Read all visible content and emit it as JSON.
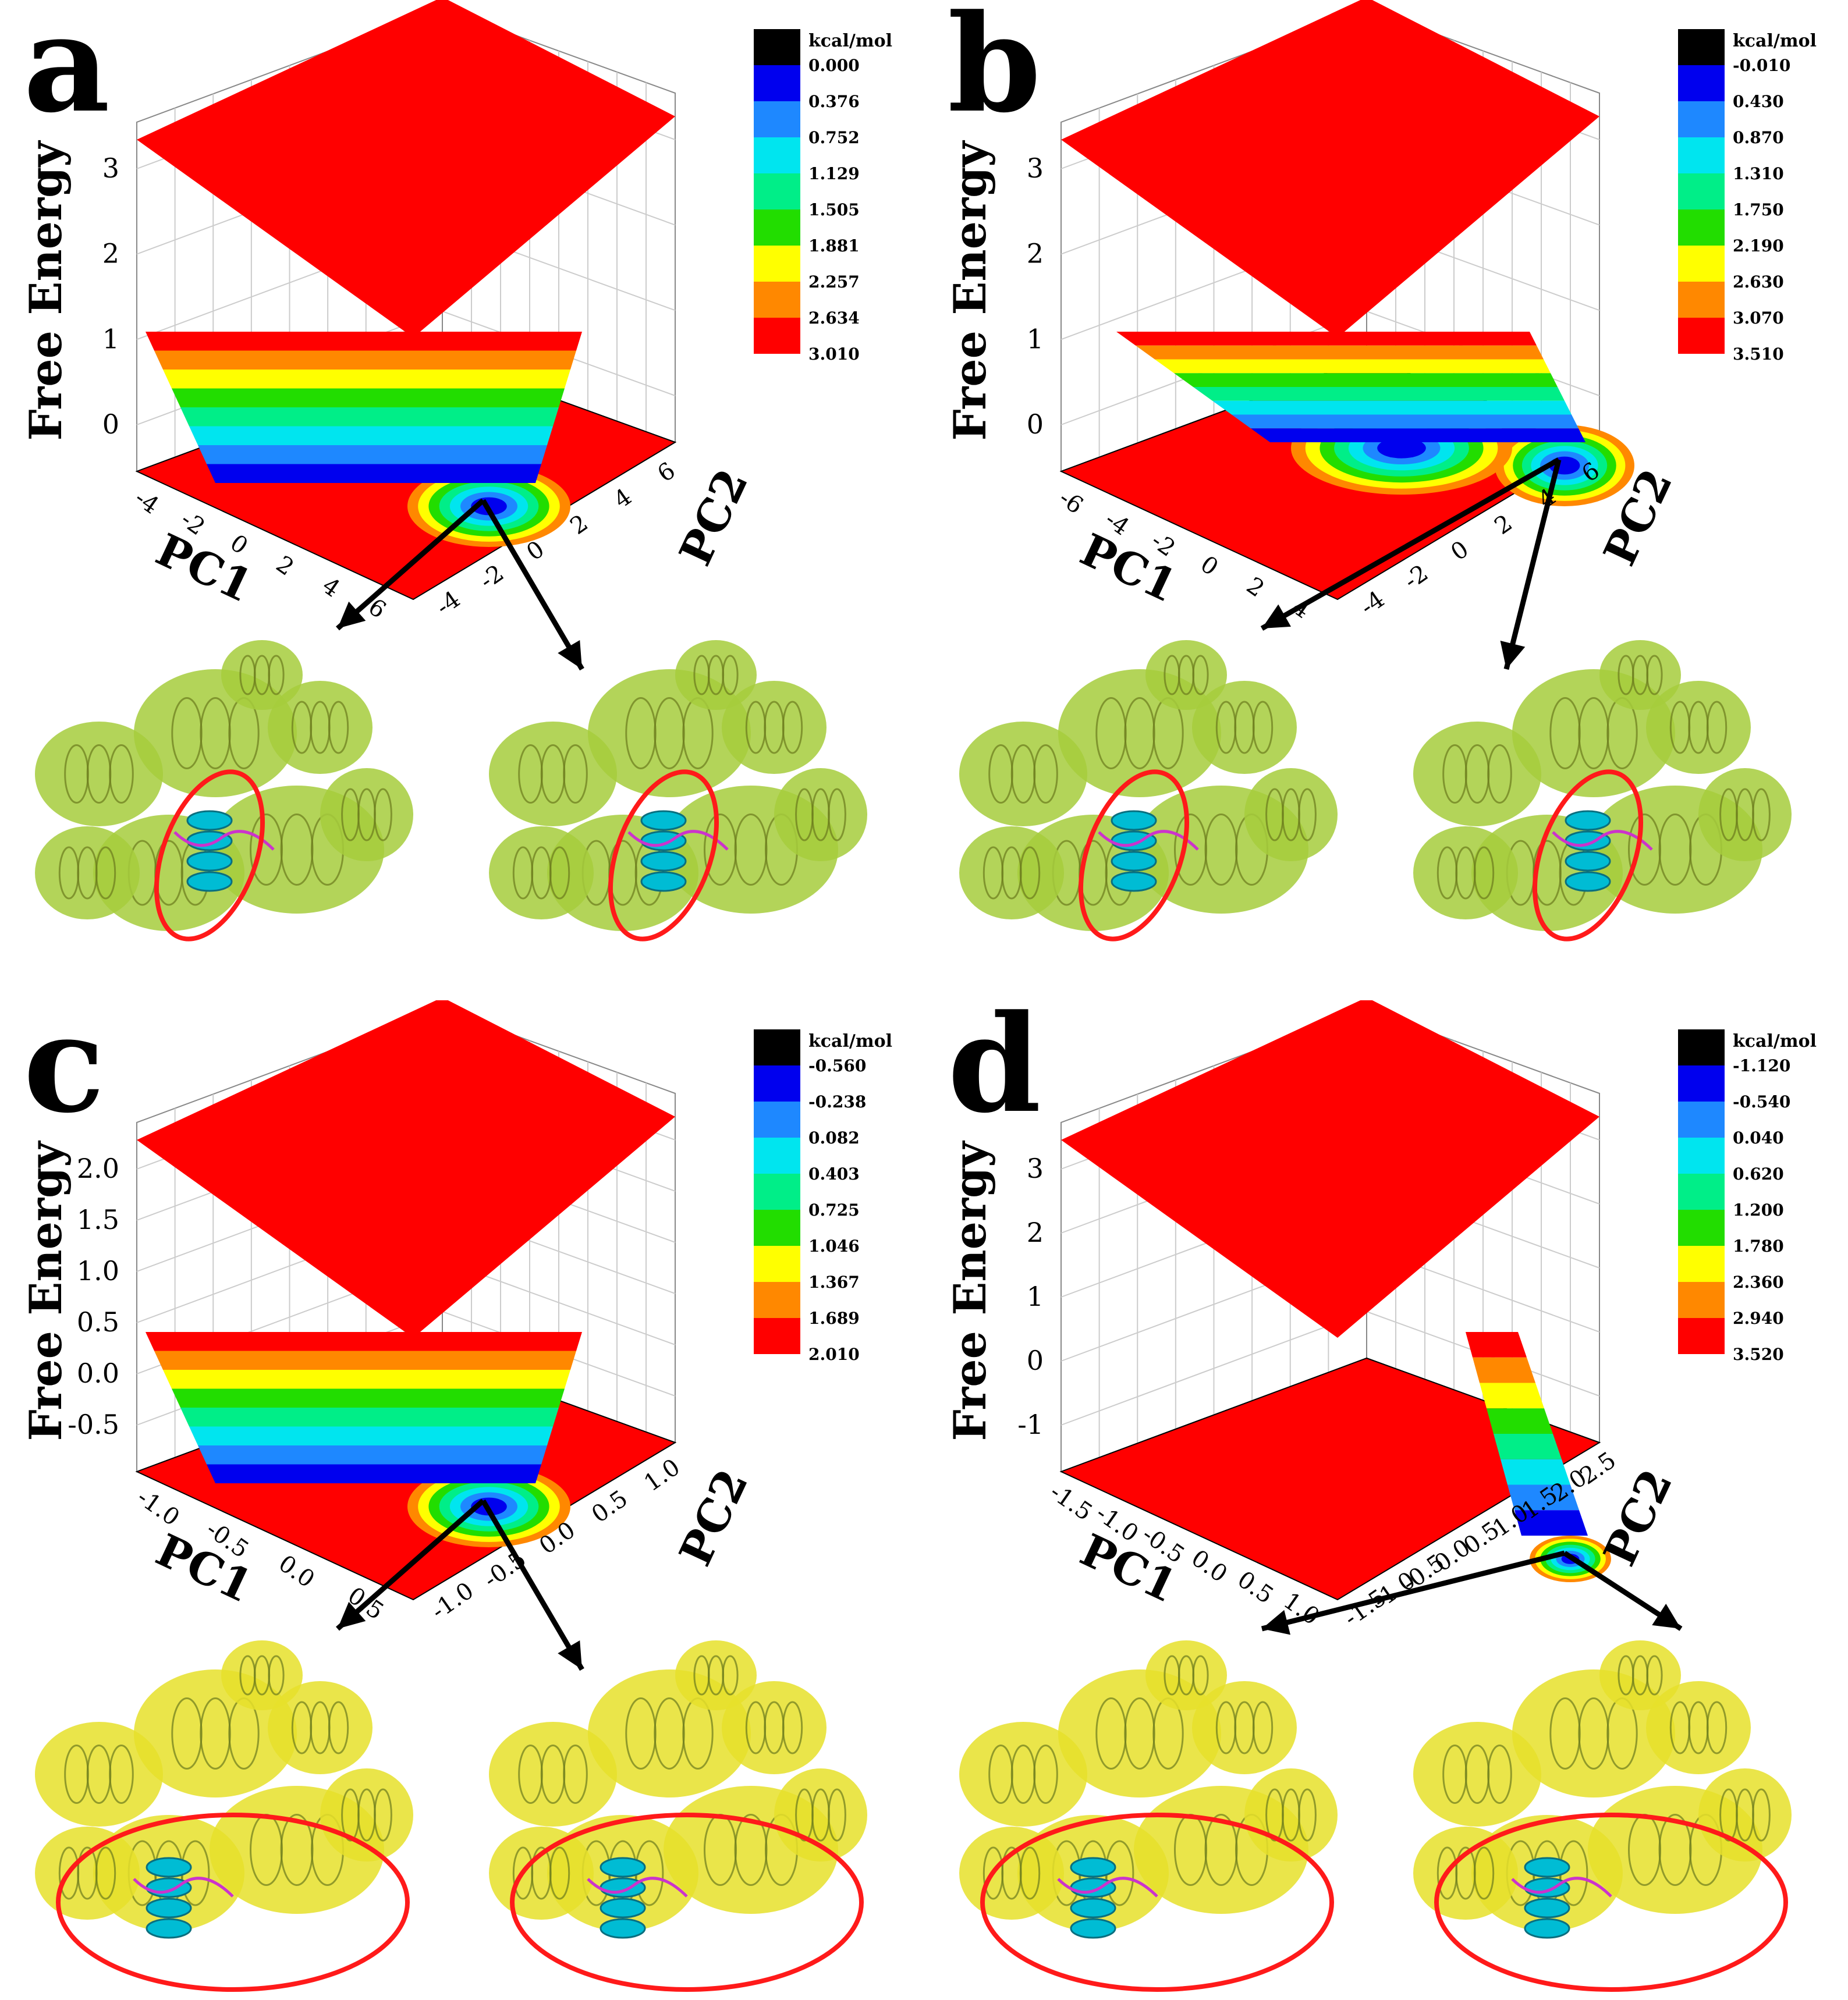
{
  "chart_data": [
    {
      "panel": "a",
      "type": "surface",
      "zlabel": "Free Energy",
      "xlabel": "PC1",
      "ylabel": "PC2",
      "zticks": [
        "0",
        "1",
        "2",
        "3"
      ],
      "xticks": [
        "-4",
        "-2",
        "0",
        "2",
        "4",
        "6"
      ],
      "yticks": [
        "-4",
        "-2",
        "0",
        "2",
        "4",
        "6"
      ],
      "colorbar_unit": "kcal/mol",
      "colorbar_levels": [
        "0.000",
        "0.376",
        "0.752",
        "1.129",
        "1.505",
        "1.881",
        "2.257",
        "2.634",
        "3.010"
      ],
      "colorbar_colors": [
        "#000000",
        "#0000ee",
        "#1e88ff",
        "#00e5ef",
        "#00ee88",
        "#22dd00",
        "#ffff00",
        "#ff8800",
        "#ff0000"
      ],
      "wells": 2,
      "structure_color": "#a6cc3c",
      "highlight_colors": [
        "#00bcd4",
        "#cc33cc"
      ]
    },
    {
      "panel": "b",
      "type": "surface",
      "zlabel": "Free Energy",
      "xlabel": "PC1",
      "ylabel": "PC2",
      "zticks": [
        "0",
        "1",
        "2",
        "3"
      ],
      "xticks": [
        "-6",
        "-4",
        "-2",
        "0",
        "2",
        "4"
      ],
      "yticks": [
        "-4",
        "-2",
        "0",
        "2",
        "4",
        "6"
      ],
      "colorbar_unit": "kcal/mol",
      "colorbar_levels": [
        "-0.010",
        "0.430",
        "0.870",
        "1.310",
        "1.750",
        "2.190",
        "2.630",
        "3.070",
        "3.510"
      ],
      "colorbar_colors": [
        "#000000",
        "#0000ee",
        "#1e88ff",
        "#00e5ef",
        "#00ee88",
        "#22dd00",
        "#ffff00",
        "#ff8800",
        "#ff0000"
      ],
      "wells": 2,
      "structure_color": "#a6cc3c",
      "highlight_colors": [
        "#00bcd4",
        "#cc33cc"
      ]
    },
    {
      "panel": "c",
      "type": "surface",
      "zlabel": "Free Energy",
      "xlabel": "PC1",
      "ylabel": "PC2",
      "zticks": [
        "-0.5",
        "0.0",
        "0.5",
        "1.0",
        "1.5",
        "2.0"
      ],
      "xticks": [
        "-1.0",
        "-0.5",
        "0.0",
        "0.5"
      ],
      "yticks": [
        "-1.0",
        "-0.5",
        "0.0",
        "0.5",
        "1.0"
      ],
      "colorbar_unit": "kcal/mol",
      "colorbar_levels": [
        "-0.560",
        "-0.238",
        "0.082",
        "0.403",
        "0.725",
        "1.046",
        "1.367",
        "1.689",
        "2.010"
      ],
      "colorbar_colors": [
        "#000000",
        "#0000ee",
        "#1e88ff",
        "#00e5ef",
        "#00ee88",
        "#22dd00",
        "#ffff00",
        "#ff8800",
        "#ff0000"
      ],
      "wells": 2,
      "structure_color": "#e6e02a",
      "highlight_colors": [
        "#00bcd4",
        "#cc33cc"
      ]
    },
    {
      "panel": "d",
      "type": "surface",
      "zlabel": "Free Energy",
      "xlabel": "PC1",
      "ylabel": "PC2",
      "zticks": [
        "-1",
        "0",
        "1",
        "2",
        "3"
      ],
      "xticks": [
        "-1.5",
        "-1.0",
        "-0.5",
        "0.0",
        "0.5",
        "1.0"
      ],
      "yticks": [
        "-1.5",
        "-1.0",
        "-0.5",
        "0.0",
        "0.5",
        "1.0",
        "1.5",
        "2.0",
        "2.5"
      ],
      "colorbar_unit": "kcal/mol",
      "colorbar_levels": [
        "-1.120",
        "-0.540",
        "0.040",
        "0.620",
        "1.200",
        "1.780",
        "2.360",
        "2.940",
        "3.520"
      ],
      "colorbar_colors": [
        "#000000",
        "#0000ee",
        "#1e88ff",
        "#00e5ef",
        "#00ee88",
        "#22dd00",
        "#ffff00",
        "#ff8800",
        "#ff0000"
      ],
      "wells": 1,
      "structure_color": "#e6e02a",
      "highlight_colors": [
        "#00bcd4",
        "#cc33cc"
      ]
    }
  ]
}
